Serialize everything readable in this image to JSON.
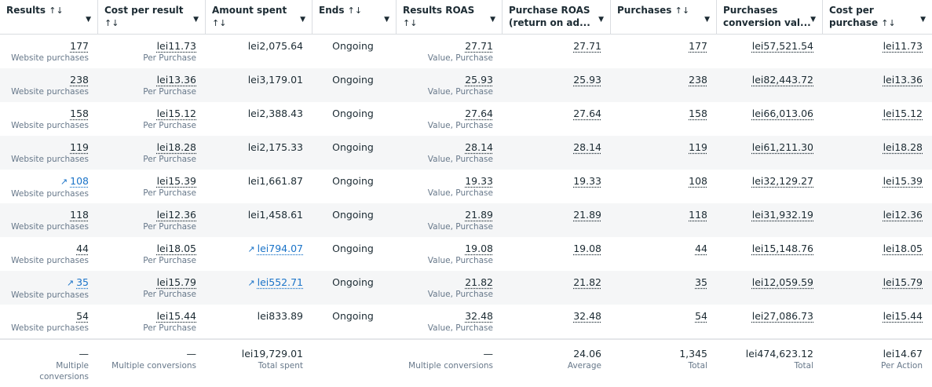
{
  "colors": {
    "accent": "#1a73c8",
    "alt_row": "#f5f6f7"
  },
  "headers": [
    {
      "l1": "Results",
      "sort": "↑↓",
      "inline": true
    },
    {
      "l1": "Cost per result",
      "sort": "↑↓"
    },
    {
      "l1": "Amount spent",
      "sort": "↑↓"
    },
    {
      "l1": "Ends",
      "sort": "↑↓",
      "inline": true
    },
    {
      "l1": "Results ROAS",
      "sort": "↑↓"
    },
    {
      "l1": "Purchase ROAS",
      "l2": "(return on ad..."
    },
    {
      "l1": "Purchases",
      "sort": "↑↓",
      "inline": true
    },
    {
      "l1": "Purchases",
      "l2": "conversion val..."
    },
    {
      "l1": "Cost per",
      "l2": "purchase",
      "sort": "↑↓",
      "inline": true
    }
  ],
  "result_sub": "Website purchases",
  "cpr_sub": "Per Purchase",
  "roas_sub": "Value, Purchase",
  "rows": [
    {
      "results": "177",
      "cpr": "lei11.73",
      "spent": "lei2,075.64",
      "ends": "Ongoing",
      "rroas": "27.71",
      "proas": "27.71",
      "purchases": "177",
      "value": "lei57,521.54",
      "cpp": "lei11.73"
    },
    {
      "results": "238",
      "cpr": "lei13.36",
      "spent": "lei3,179.01",
      "ends": "Ongoing",
      "rroas": "25.93",
      "proas": "25.93",
      "purchases": "238",
      "value": "lei82,443.72",
      "cpp": "lei13.36"
    },
    {
      "results": "158",
      "cpr": "lei15.12",
      "spent": "lei2,388.43",
      "ends": "Ongoing",
      "rroas": "27.64",
      "proas": "27.64",
      "purchases": "158",
      "value": "lei66,013.06",
      "cpp": "lei15.12"
    },
    {
      "results": "119",
      "cpr": "lei18.28",
      "spent": "lei2,175.33",
      "ends": "Ongoing",
      "rroas": "28.14",
      "proas": "28.14",
      "purchases": "119",
      "value": "lei61,211.30",
      "cpp": "lei18.28"
    },
    {
      "results": "108",
      "results_trend": true,
      "cpr": "lei15.39",
      "spent": "lei1,661.87",
      "ends": "Ongoing",
      "rroas": "19.33",
      "proas": "19.33",
      "purchases": "108",
      "value": "lei32,129.27",
      "cpp": "lei15.39"
    },
    {
      "results": "118",
      "cpr": "lei12.36",
      "spent": "lei1,458.61",
      "ends": "Ongoing",
      "rroas": "21.89",
      "proas": "21.89",
      "purchases": "118",
      "value": "lei31,932.19",
      "cpp": "lei12.36"
    },
    {
      "results": "44",
      "cpr": "lei18.05",
      "spent": "lei794.07",
      "spent_trend": true,
      "ends": "Ongoing",
      "rroas": "19.08",
      "proas": "19.08",
      "purchases": "44",
      "value": "lei15,148.76",
      "cpp": "lei18.05"
    },
    {
      "results": "35",
      "results_trend": true,
      "cpr": "lei15.79",
      "spent": "lei552.71",
      "spent_trend": true,
      "ends": "Ongoing",
      "rroas": "21.82",
      "proas": "21.82",
      "purchases": "35",
      "value": "lei12,059.59",
      "cpp": "lei15.79"
    },
    {
      "results": "54",
      "cpr": "lei15.44",
      "spent": "lei833.89",
      "ends": "Ongoing",
      "rroas": "32.48",
      "proas": "32.48",
      "purchases": "54",
      "value": "lei27,086.73",
      "cpp": "lei15.44"
    }
  ],
  "footer": [
    {
      "v": "—",
      "s": "Multiple conversions"
    },
    {
      "v": "—",
      "s": "Multiple conversions"
    },
    {
      "v": "lei19,729.01",
      "s": "Total spent"
    },
    {
      "v": "",
      "s": ""
    },
    {
      "v": "—",
      "s": "Multiple conversions"
    },
    {
      "v": "24.06",
      "s": "Average"
    },
    {
      "v": "1,345",
      "s": "Total"
    },
    {
      "v": "lei474,623.12",
      "s": "Total"
    },
    {
      "v": "lei14.67",
      "s": "Per Action"
    }
  ]
}
